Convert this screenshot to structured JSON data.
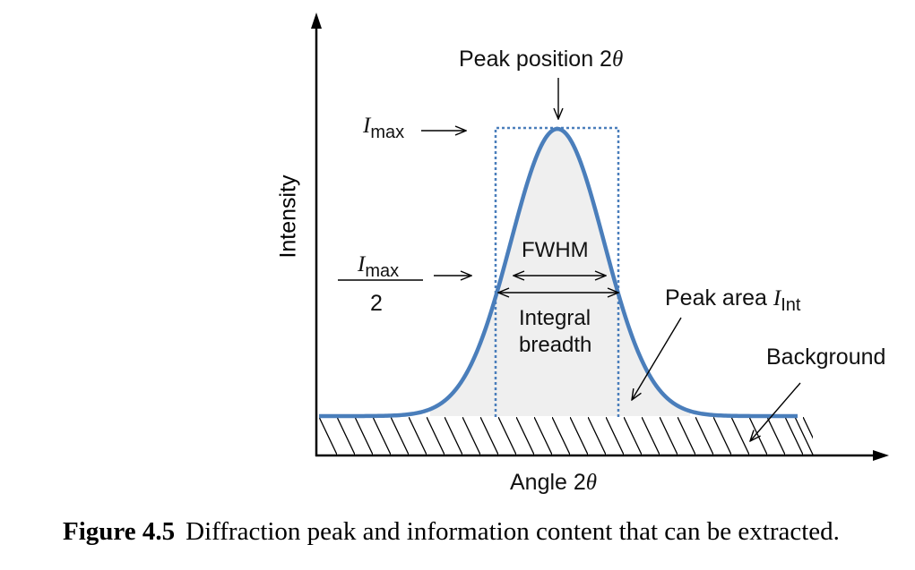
{
  "labels": {
    "peak_position": "Peak position 2",
    "theta": "θ",
    "imax_I": "I",
    "imax_sub": "max",
    "half_denominator": "2",
    "fwhm": "FWHM",
    "integral_breadth_line1": "Integral",
    "integral_breadth_line2": "breadth",
    "peak_area": "Peak area ",
    "peak_area_I": "I",
    "peak_area_sub": "Int",
    "background": "Background",
    "x_axis": "Angle 2",
    "y_axis": "Intensity"
  },
  "caption": {
    "number": "Figure 4.5",
    "text": "Diffraction peak and information content that can be extracted."
  },
  "colors": {
    "curve": "#4a7ebb",
    "fill": "#efefef",
    "dotted_box": "#4a7ebb",
    "axes": "#000000"
  }
}
